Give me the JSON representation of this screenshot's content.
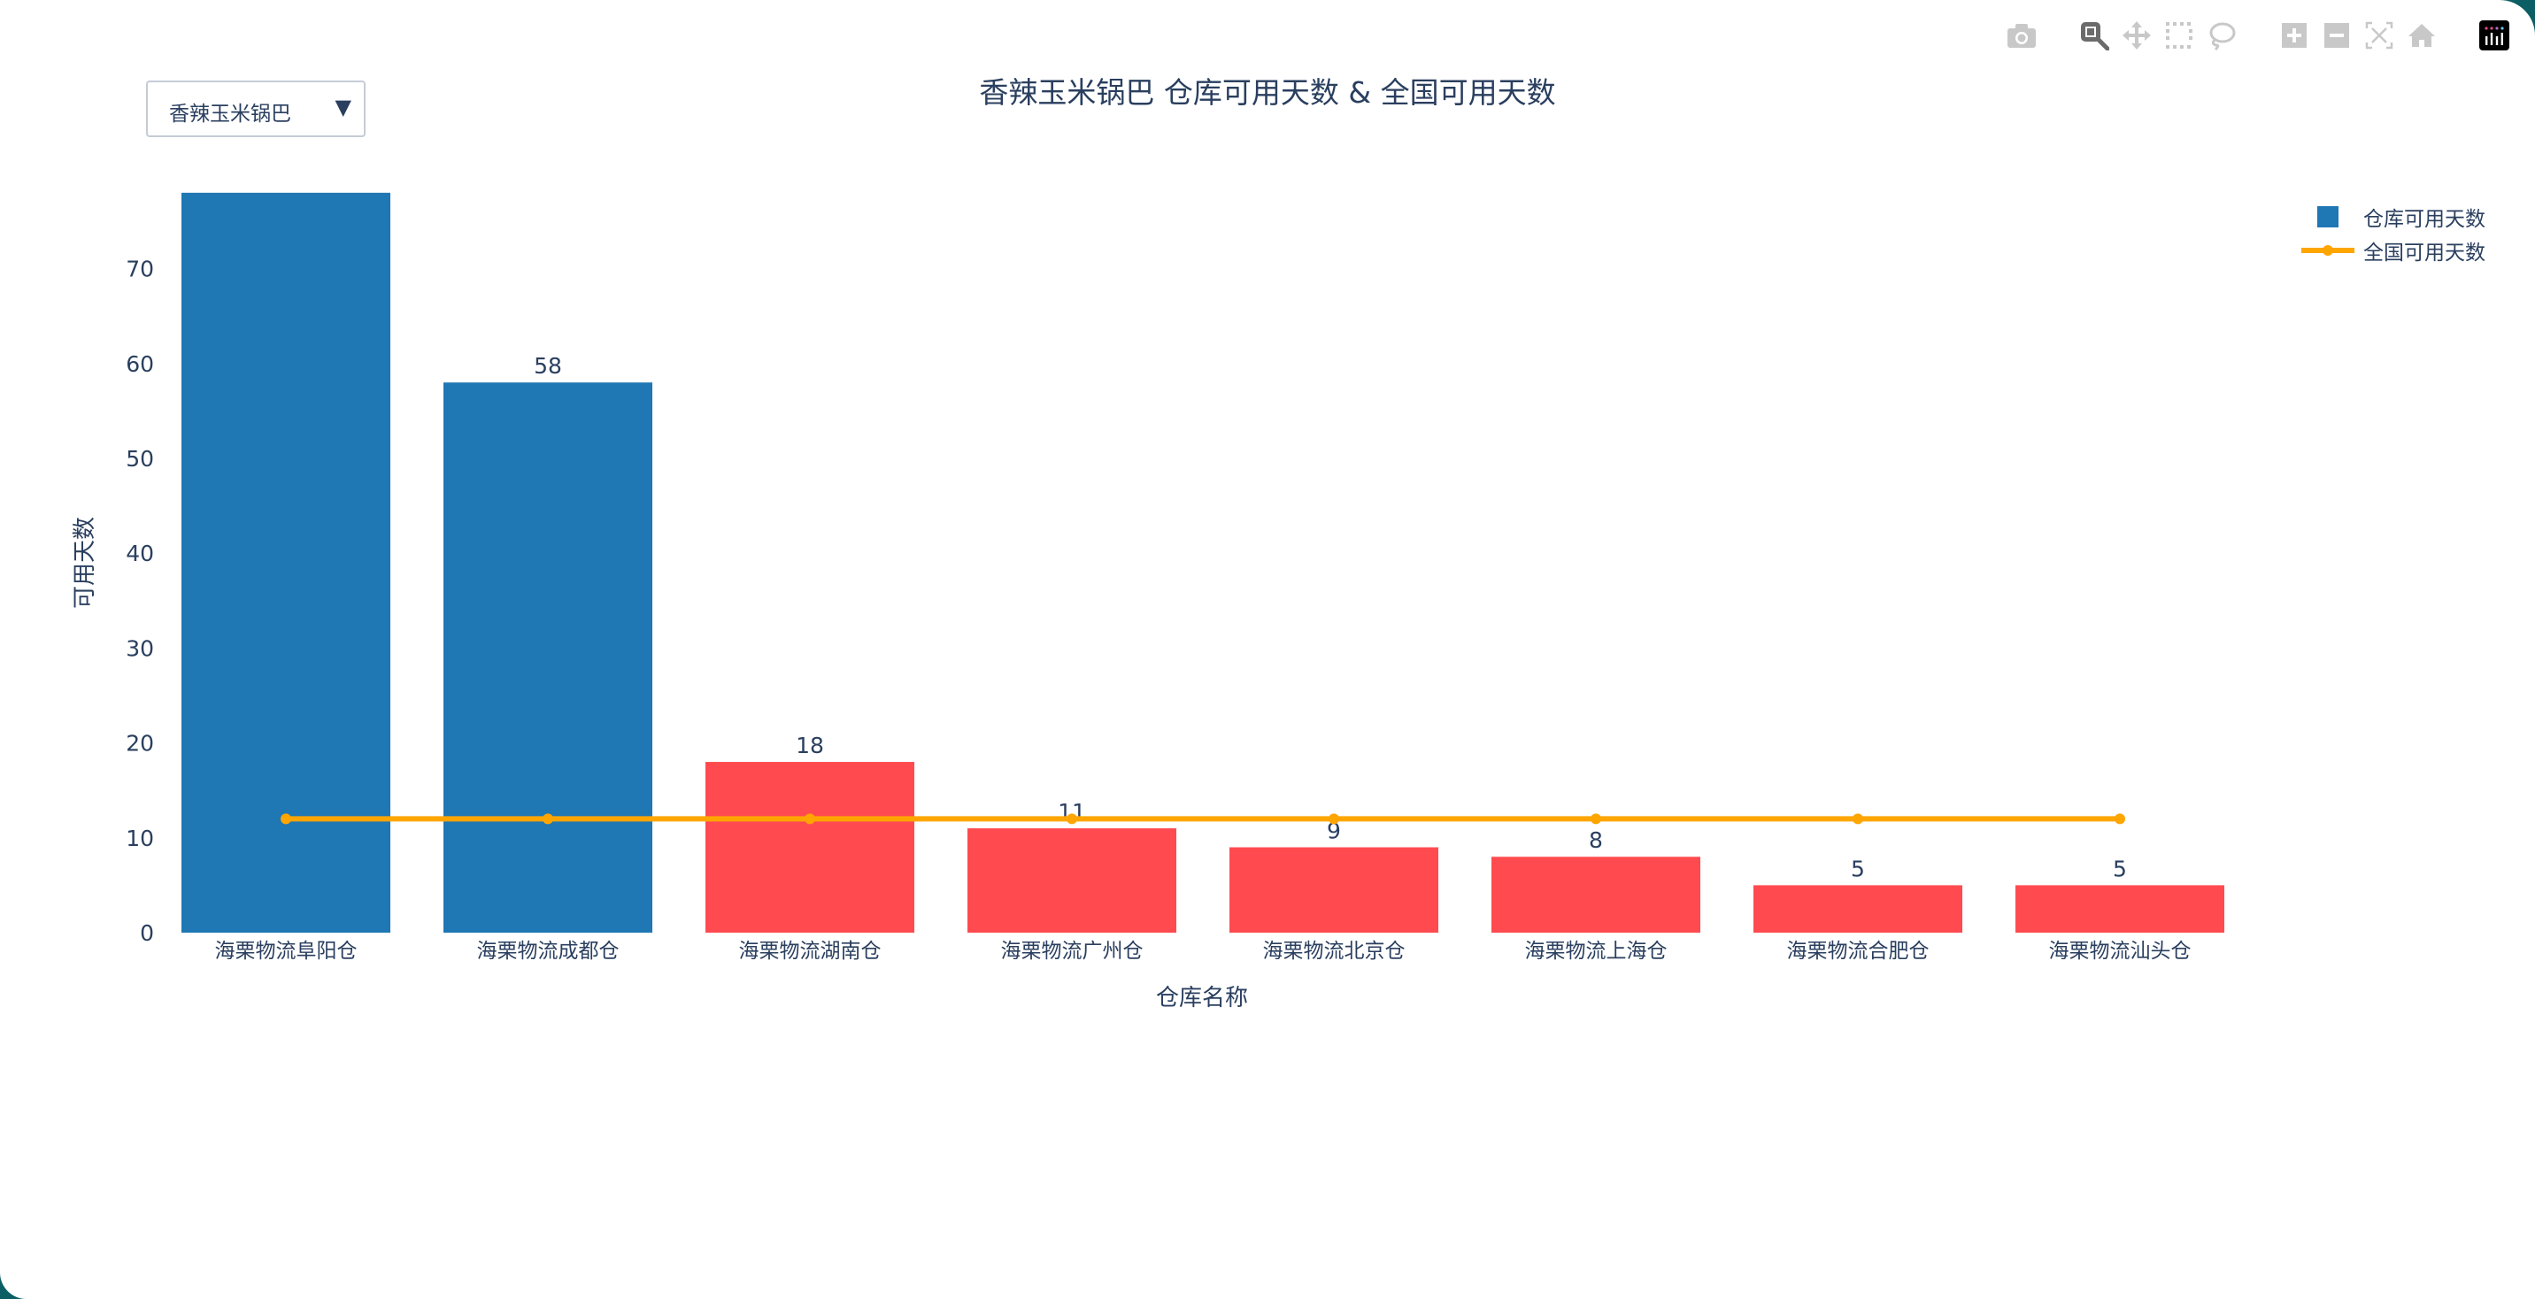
{
  "toolbar": {
    "buttons": [
      {
        "name": "camera-icon",
        "label": "Download plot as png"
      },
      {
        "name": "zoom-icon",
        "label": "Zoom",
        "active": true
      },
      {
        "name": "pan-icon",
        "label": "Pan"
      },
      {
        "name": "box-select-icon",
        "label": "Box Select"
      },
      {
        "name": "lasso-select-icon",
        "label": "Lasso Select"
      },
      {
        "name": "zoom-in-icon",
        "label": "Zoom in"
      },
      {
        "name": "zoom-out-icon",
        "label": "Zoom out"
      },
      {
        "name": "autoscale-icon",
        "label": "Autoscale"
      },
      {
        "name": "reset-axes-icon",
        "label": "Reset axes"
      },
      {
        "name": "plotly-logo-icon",
        "label": "Produced with Plotly"
      }
    ]
  },
  "dropdown": {
    "selected": "香辣玉米锅巴",
    "arrow": "▼"
  },
  "colors": {
    "bar_above": "#1f77b4",
    "bar_below": "#ff4b4f",
    "line": "#ffa500",
    "text": "#2a3f5f"
  },
  "chart_data": {
    "type": "bar",
    "title": "香辣玉米锅巴 仓库可用天数 & 全国可用天数",
    "xlabel": "仓库名称",
    "ylabel": "可用天数",
    "ylim": [
      0,
      80
    ],
    "yticks": [
      0,
      10,
      20,
      30,
      40,
      50,
      60,
      70
    ],
    "grid": false,
    "legend_position": "top-right",
    "categories": [
      "海栗物流阜阳仓",
      "海栗物流成都仓",
      "海栗物流湖南仓",
      "海栗物流广州仓",
      "海栗物流北京仓",
      "海栗物流上海仓",
      "海栗物流合肥仓",
      "海栗物流汕头仓"
    ],
    "series": [
      {
        "name": "仓库可用天数",
        "type": "bar",
        "values": [
          78,
          58,
          18,
          11,
          9,
          8,
          5,
          5
        ],
        "labels": [
          "",
          "58",
          "18",
          "11",
          "9",
          "8",
          "5",
          "5"
        ],
        "colors": [
          "#1f77b4",
          "#1f77b4",
          "#ff4b4f",
          "#ff4b4f",
          "#ff4b4f",
          "#ff4b4f",
          "#ff4b4f",
          "#ff4b4f"
        ]
      },
      {
        "name": "全国可用天数",
        "type": "line",
        "values": [
          12,
          12,
          12,
          12,
          12,
          12,
          12,
          12
        ]
      }
    ]
  },
  "legend": {
    "items": [
      {
        "label": "仓库可用天数",
        "symbol": "square"
      },
      {
        "label": "全国可用天数",
        "symbol": "line-marker"
      }
    ]
  }
}
